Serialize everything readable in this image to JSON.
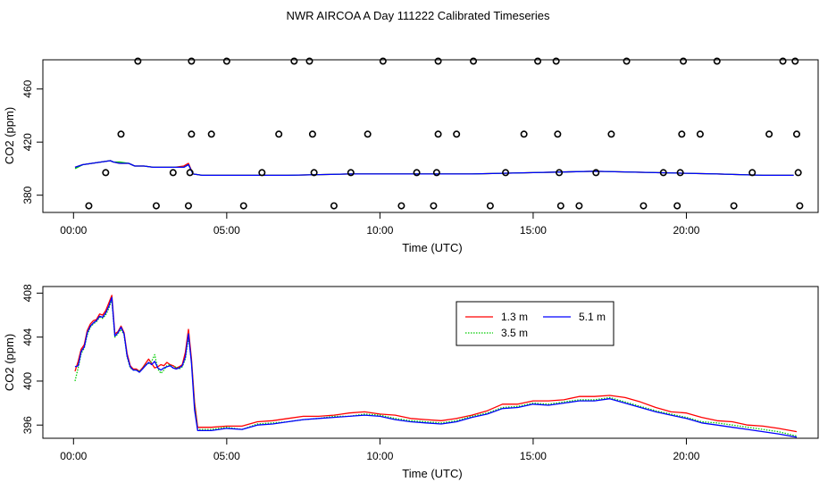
{
  "title": "NWR AIRCOA A  Day 111222  Calibrated Timeseries",
  "chart_data": [
    {
      "type": "line",
      "name": "top-panel",
      "xlabel": "Time (UTC)",
      "ylabel": "CO2 (ppm)",
      "xlim": [
        -1.0,
        24.3
      ],
      "ylim": [
        367,
        482
      ],
      "xticks": [
        0,
        5,
        10,
        15,
        20
      ],
      "xtick_labels": [
        "00:00",
        "05:00",
        "10:00",
        "15:00",
        "20:00"
      ],
      "yticks": [
        380,
        420,
        460
      ],
      "ytick_labels": [
        "380",
        "420",
        "460"
      ],
      "series_colors": [
        "#ff0000",
        "#00cc00",
        "#0000ff"
      ],
      "series": [
        {
          "name": "1.3 m",
          "x": [
            0.05,
            0.3,
            0.6,
            0.9,
            1.2,
            1.3,
            1.5,
            1.8,
            2.0,
            2.3,
            2.6,
            3.0,
            3.3,
            3.6,
            3.75,
            3.9,
            4.2,
            5,
            7,
            9,
            11,
            13,
            15,
            17,
            19,
            21,
            22.5,
            23.5
          ],
          "values": [
            401,
            403,
            404,
            405,
            406,
            405,
            404,
            404,
            402,
            402,
            401,
            401,
            401,
            402,
            404,
            396,
            395,
            395,
            395,
            396,
            396,
            396,
            397,
            398,
            397,
            396,
            395,
            395
          ]
        },
        {
          "name": "3.5 m",
          "x": [
            0.05,
            0.3,
            0.6,
            0.9,
            1.2,
            1.3,
            1.5,
            1.8,
            2.0,
            2.3,
            2.6,
            3.0,
            3.3,
            3.6,
            3.75,
            3.9,
            4.2,
            5,
            7,
            9,
            11,
            13,
            15,
            17,
            19,
            21,
            22.5,
            23.5
          ],
          "values": [
            400,
            403,
            404,
            405,
            406,
            405,
            405,
            404,
            402,
            402,
            401,
            401,
            401,
            401,
            403,
            396,
            395,
            395,
            395,
            396,
            396,
            396,
            397,
            398,
            397,
            396,
            395,
            395
          ]
        },
        {
          "name": "5.1 m",
          "x": [
            0.05,
            0.3,
            0.6,
            0.9,
            1.2,
            1.3,
            1.5,
            1.8,
            2.0,
            2.3,
            2.6,
            3.0,
            3.3,
            3.6,
            3.75,
            3.9,
            4.2,
            5,
            7,
            9,
            11,
            13,
            15,
            17,
            19,
            21,
            22.5,
            23.5
          ],
          "values": [
            401,
            403,
            404,
            405,
            406,
            405,
            404,
            404,
            402,
            402,
            401,
            401,
            401,
            401,
            403,
            396,
            395,
            395,
            395,
            396,
            396,
            396,
            397,
            398,
            397,
            396,
            395,
            395
          ]
        }
      ],
      "points": {
        "x": [
          0.5,
          1.05,
          1.55,
          2.1,
          2.7,
          3.25,
          3.75,
          3.8,
          3.85,
          3.85,
          4.5,
          5.0,
          5.55,
          6.15,
          6.7,
          7.2,
          7.7,
          7.8,
          7.85,
          8.5,
          9.05,
          9.6,
          10.1,
          10.7,
          11.2,
          11.75,
          11.85,
          11.9,
          11.9,
          12.5,
          13.05,
          13.6,
          14.1,
          14.7,
          15.15,
          15.75,
          15.8,
          15.85,
          15.9,
          16.5,
          17.05,
          17.55,
          18.05,
          18.6,
          19.25,
          19.7,
          19.8,
          19.85,
          19.9,
          20.45,
          21.0,
          21.55,
          22.15,
          22.7,
          23.15,
          23.55,
          23.6,
          23.65,
          23.7
        ],
        "y": [
          372,
          397,
          426,
          481,
          372,
          397,
          372,
          397,
          426,
          481,
          426,
          481,
          372,
          397,
          426,
          481,
          481,
          426,
          397,
          372,
          397,
          426,
          481,
          372,
          397,
          372,
          397,
          426,
          481,
          426,
          481,
          372,
          397,
          426,
          481,
          481,
          426,
          397,
          372,
          372,
          397,
          426,
          481,
          372,
          397,
          372,
          397,
          426,
          481,
          426,
          481,
          372,
          397,
          426,
          481,
          481,
          426,
          397,
          372
        ]
      }
    },
    {
      "type": "line",
      "name": "bottom-panel",
      "xlabel": "Time (UTC)",
      "ylabel": "CO2 (ppm)",
      "xlim": [
        -1.0,
        24.3
      ],
      "ylim": [
        394.8,
        408.6
      ],
      "xticks": [
        0,
        5,
        10,
        15,
        20
      ],
      "xtick_labels": [
        "00:00",
        "05:00",
        "10:00",
        "15:00",
        "20:00"
      ],
      "yticks": [
        396,
        400,
        404,
        408
      ],
      "ytick_labels": [
        "396",
        "400",
        "404",
        "408"
      ],
      "legend": {
        "position": "top-center",
        "entries": [
          "1.3 m",
          "3.5 m",
          "5.1 m"
        ],
        "colors": [
          "#ff0000",
          "#00cc00",
          "#0000ff"
        ],
        "styles": [
          "solid",
          "dotted",
          "solid"
        ]
      },
      "series": [
        {
          "name": "1.3 m",
          "x": [
            0.05,
            0.15,
            0.25,
            0.35,
            0.45,
            0.55,
            0.65,
            0.75,
            0.85,
            0.95,
            1.05,
            1.15,
            1.25,
            1.35,
            1.45,
            1.55,
            1.65,
            1.75,
            1.85,
            1.95,
            2.05,
            2.15,
            2.25,
            2.35,
            2.45,
            2.55,
            2.65,
            2.75,
            2.85,
            2.95,
            3.05,
            3.15,
            3.25,
            3.35,
            3.45,
            3.55,
            3.65,
            3.75,
            3.85,
            3.95,
            4.05,
            4.5,
            5.0,
            5.5,
            6.0,
            6.5,
            7.0,
            7.5,
            8.0,
            8.5,
            9.0,
            9.5,
            10.0,
            10.5,
            11.0,
            11.5,
            12.0,
            12.5,
            13.0,
            13.5,
            14.0,
            14.5,
            15.0,
            15.5,
            16.0,
            16.5,
            17.0,
            17.5,
            18.0,
            18.5,
            19.0,
            19.5,
            20.0,
            20.5,
            21.0,
            21.5,
            22.0,
            22.5,
            23.0,
            23.6
          ],
          "values": [
            400.9,
            401.8,
            402.9,
            403.3,
            404.6,
            405.2,
            405.5,
            405.6,
            406.1,
            406.0,
            406.4,
            407.1,
            407.8,
            404.3,
            404.5,
            405.0,
            404.4,
            402.5,
            401.4,
            401.1,
            401.1,
            400.9,
            401.2,
            401.6,
            402.0,
            401.6,
            401.2,
            401.3,
            401.5,
            401.4,
            401.7,
            401.5,
            401.4,
            401.2,
            401.3,
            401.5,
            402.6,
            404.7,
            402.0,
            398.1,
            395.8,
            395.8,
            395.9,
            395.9,
            396.3,
            396.4,
            396.6,
            396.8,
            396.8,
            396.9,
            397.1,
            397.2,
            397.0,
            396.9,
            396.6,
            396.5,
            396.4,
            396.6,
            396.9,
            397.3,
            397.9,
            397.9,
            398.2,
            398.2,
            398.3,
            398.6,
            398.6,
            398.7,
            398.5,
            398.1,
            397.6,
            397.2,
            397.1,
            396.7,
            396.4,
            396.3,
            396.0,
            395.9,
            395.7,
            395.4
          ]
        },
        {
          "name": "3.5 m",
          "x": [
            0.05,
            0.15,
            0.25,
            0.35,
            0.45,
            0.55,
            0.65,
            0.75,
            0.85,
            0.95,
            1.05,
            1.15,
            1.25,
            1.35,
            1.45,
            1.55,
            1.65,
            1.75,
            1.85,
            1.95,
            2.05,
            2.15,
            2.25,
            2.35,
            2.45,
            2.55,
            2.65,
            2.75,
            2.85,
            2.95,
            3.05,
            3.15,
            3.25,
            3.35,
            3.45,
            3.55,
            3.65,
            3.75,
            3.85,
            3.95,
            4.05,
            4.5,
            5.0,
            5.5,
            6.0,
            6.5,
            7.0,
            7.5,
            8.0,
            8.5,
            9.0,
            9.5,
            10.0,
            10.5,
            11.0,
            11.5,
            12.0,
            12.5,
            13.0,
            13.5,
            14.0,
            14.5,
            15.0,
            15.5,
            16.0,
            16.5,
            17.0,
            17.5,
            18.0,
            18.5,
            19.0,
            19.5,
            20.0,
            20.5,
            21.0,
            21.5,
            22.0,
            22.5,
            23.0,
            23.6
          ],
          "values": [
            400.0,
            401.2,
            402.5,
            403.0,
            404.2,
            404.9,
            405.2,
            405.4,
            405.8,
            405.7,
            406.0,
            406.6,
            407.4,
            404.0,
            404.3,
            404.7,
            404.2,
            402.2,
            401.2,
            401.0,
            401.0,
            400.9,
            401.1,
            401.5,
            401.6,
            401.8,
            402.4,
            401.1,
            400.7,
            401.0,
            401.4,
            401.5,
            401.2,
            401.3,
            401.1,
            401.3,
            402.0,
            404.0,
            401.8,
            397.8,
            395.6,
            395.6,
            395.8,
            395.6,
            396.1,
            396.2,
            396.3,
            396.5,
            396.6,
            396.8,
            396.8,
            397.0,
            396.9,
            396.6,
            396.4,
            396.3,
            396.2,
            396.4,
            396.8,
            397.1,
            397.6,
            397.7,
            398.0,
            397.9,
            398.1,
            398.3,
            398.3,
            398.5,
            398.1,
            397.7,
            397.3,
            397.0,
            396.7,
            396.3,
            396.2,
            396.0,
            395.8,
            395.6,
            395.4,
            395.0
          ]
        },
        {
          "name": "5.1 m",
          "x": [
            0.05,
            0.15,
            0.25,
            0.35,
            0.45,
            0.55,
            0.65,
            0.75,
            0.85,
            0.95,
            1.05,
            1.15,
            1.25,
            1.35,
            1.45,
            1.55,
            1.65,
            1.75,
            1.85,
            1.95,
            2.05,
            2.15,
            2.25,
            2.35,
            2.45,
            2.55,
            2.65,
            2.75,
            2.85,
            2.95,
            3.05,
            3.15,
            3.25,
            3.35,
            3.45,
            3.55,
            3.65,
            3.75,
            3.85,
            3.95,
            4.05,
            4.5,
            5.0,
            5.5,
            6.0,
            6.5,
            7.0,
            7.5,
            8.0,
            8.5,
            9.0,
            9.5,
            10.0,
            10.5,
            11.0,
            11.5,
            12.0,
            12.5,
            13.0,
            13.5,
            14.0,
            14.5,
            15.0,
            15.5,
            16.0,
            16.5,
            17.0,
            17.5,
            18.0,
            18.5,
            19.0,
            19.5,
            20.0,
            20.5,
            21.0,
            21.5,
            22.0,
            22.5,
            23.0,
            23.6
          ],
          "values": [
            401.3,
            401.4,
            402.7,
            403.1,
            404.4,
            405.0,
            405.3,
            405.5,
            405.9,
            405.8,
            406.2,
            406.8,
            407.6,
            404.1,
            404.4,
            404.9,
            404.3,
            402.3,
            401.3,
            401.0,
            401.0,
            400.8,
            401.1,
            401.4,
            401.7,
            401.5,
            401.8,
            401.2,
            401.0,
            401.2,
            401.3,
            401.4,
            401.2,
            401.1,
            401.2,
            401.4,
            402.2,
            404.3,
            401.6,
            397.4,
            395.5,
            395.5,
            395.7,
            395.6,
            396.0,
            396.1,
            396.3,
            396.5,
            396.6,
            396.7,
            396.8,
            396.9,
            396.8,
            396.5,
            396.3,
            396.2,
            396.1,
            396.3,
            396.7,
            397.0,
            397.5,
            397.6,
            397.9,
            397.8,
            398.0,
            398.2,
            398.2,
            398.4,
            398.0,
            397.6,
            397.2,
            396.9,
            396.6,
            396.2,
            396.0,
            395.8,
            395.6,
            395.4,
            395.2,
            394.9
          ]
        }
      ]
    }
  ]
}
